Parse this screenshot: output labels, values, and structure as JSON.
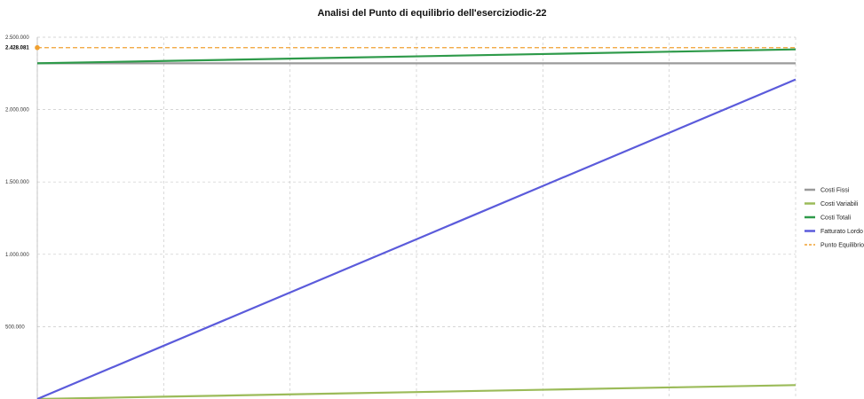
{
  "chart_data": {
    "type": "line",
    "title": "Analisi del Punto di equilibrio dell'eserciziodic-22",
    "xlabel": "",
    "ylabel": "",
    "x": [
      0,
      1,
      2,
      3,
      4,
      5,
      6
    ],
    "ylim": [
      0,
      2500000
    ],
    "y_ticks": [
      {
        "value": 500000,
        "label": "500.000"
      },
      {
        "value": 1000000,
        "label": "1.000.000"
      },
      {
        "value": 1500000,
        "label": "1.500.000"
      },
      {
        "value": 2000000,
        "label": "2.000.000"
      },
      {
        "value": 2500000,
        "label": "2.500.000"
      }
    ],
    "grid": true,
    "legend_position": "right",
    "series": [
      {
        "name": "Costi Fissi",
        "color": "#9a9a9a",
        "style": "solid",
        "values": [
          2320000,
          2320000,
          2320000,
          2320000,
          2320000,
          2320000,
          2320000
        ]
      },
      {
        "name": "Costi Variabili",
        "color": "#9bbb59",
        "style": "solid",
        "values": [
          0,
          16000,
          32000,
          48000,
          64000,
          80000,
          96000
        ]
      },
      {
        "name": "Costi Totali",
        "color": "#2e9a4a",
        "style": "solid",
        "values": [
          2320000,
          2336000,
          2352000,
          2368000,
          2384000,
          2400000,
          2416000
        ]
      },
      {
        "name": "Fatturato Lordo",
        "color": "#5b5bdb",
        "style": "solid",
        "values": [
          0,
          368000,
          736000,
          1104000,
          1472000,
          1840000,
          2208000
        ]
      },
      {
        "name": "Punto Equilibrio",
        "color": "#f0a030",
        "style": "dashed",
        "values": [
          2428081,
          2428081,
          2428081,
          2428081,
          2428081,
          2428081,
          2428081
        ]
      }
    ],
    "break_even": {
      "value": 2428081,
      "label": "2.428.081",
      "color": "#f0a030"
    }
  }
}
